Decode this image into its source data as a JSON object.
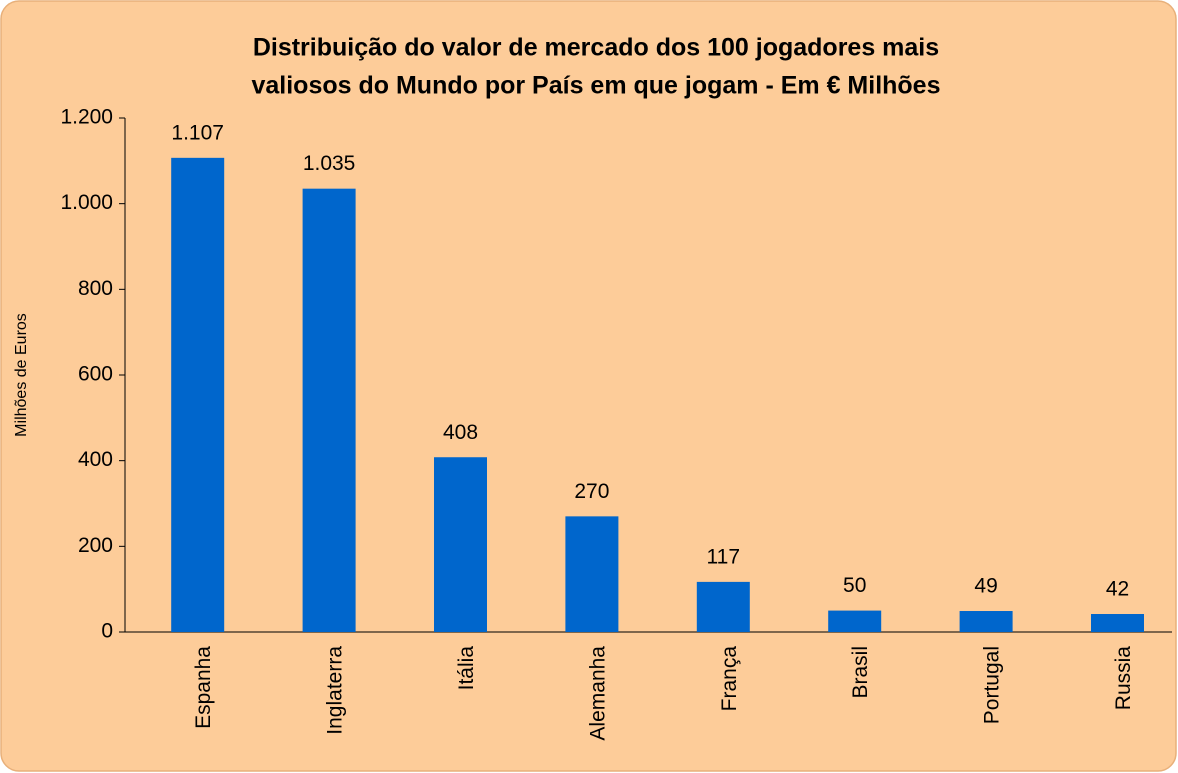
{
  "chart_data": {
    "type": "bar",
    "title": [
      "Distribuição do valor de mercado dos 100 jogadores mais",
      "valiosos do Mundo por País em que jogam - Em € Milhões"
    ],
    "ylabel": "Milhões de Euros",
    "categories": [
      "Espanha",
      "Inglaterra",
      "Itália",
      "Alemanha",
      "França",
      "Brasil",
      "Portugal",
      "Russia"
    ],
    "values": [
      1107,
      1035,
      408,
      270,
      117,
      50,
      49,
      42
    ],
    "value_labels": [
      "1.107",
      "1.035",
      "408",
      "270",
      "117",
      "50",
      "49",
      "42"
    ],
    "color": "#0066cc",
    "ylim": [
      0,
      1200
    ],
    "yticks": [
      0,
      200,
      400,
      600,
      800,
      {
        "value": 1000,
        "label": "1.000"
      },
      {
        "value": 1200,
        "label": "1.200"
      }
    ],
    "grid": false
  }
}
